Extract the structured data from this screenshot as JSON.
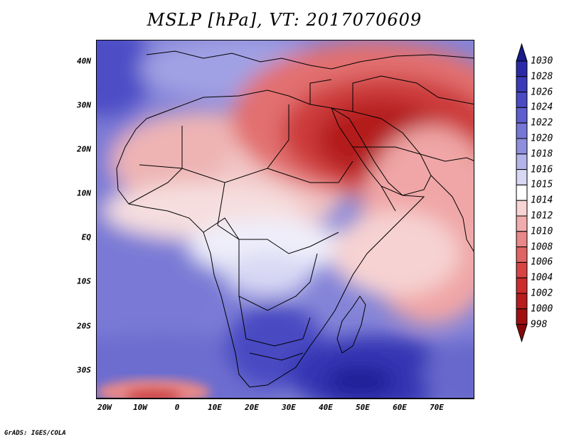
{
  "title": "MSLP [hPa], VT: 2017070609",
  "credit": "GrADS: IGES/COLA",
  "lat_labels": [
    "40N",
    "30N",
    "20N",
    "10N",
    "EQ",
    "10S",
    "20S",
    "30S"
  ],
  "lon_labels": [
    "20W",
    "10W",
    "0",
    "10E",
    "20E",
    "30E",
    "40E",
    "50E",
    "60E",
    "70E"
  ],
  "colorbar": {
    "levels": [
      "1030",
      "1028",
      "1026",
      "1024",
      "1022",
      "1020",
      "1018",
      "1016",
      "1015",
      "1014",
      "1012",
      "1010",
      "1008",
      "1006",
      "1004",
      "1002",
      "1000",
      "998"
    ],
    "colors": [
      "#1a1a8c",
      "#2a2aa8",
      "#3a3ab8",
      "#4a4ac4",
      "#5e5ece",
      "#7676d6",
      "#8e8ede",
      "#b4b4ea",
      "#d8d8f4",
      "#ffffff",
      "#f8d4d4",
      "#f0acac",
      "#e88888",
      "#e06464",
      "#d84444",
      "#cc2c2c",
      "#b81c1c",
      "#a01010",
      "#880808"
    ]
  },
  "map": {
    "region": "Africa, Middle East and Indian Ocean",
    "lon_range": [
      -22,
      80
    ],
    "lat_range": [
      -36,
      45
    ],
    "features": {
      "high_south_atlantic": "1022-1026 hPa",
      "high_south_indian_ocean": "1026-1030 hPa",
      "low_arabia_persia": "998-1002 hPa"
    }
  }
}
